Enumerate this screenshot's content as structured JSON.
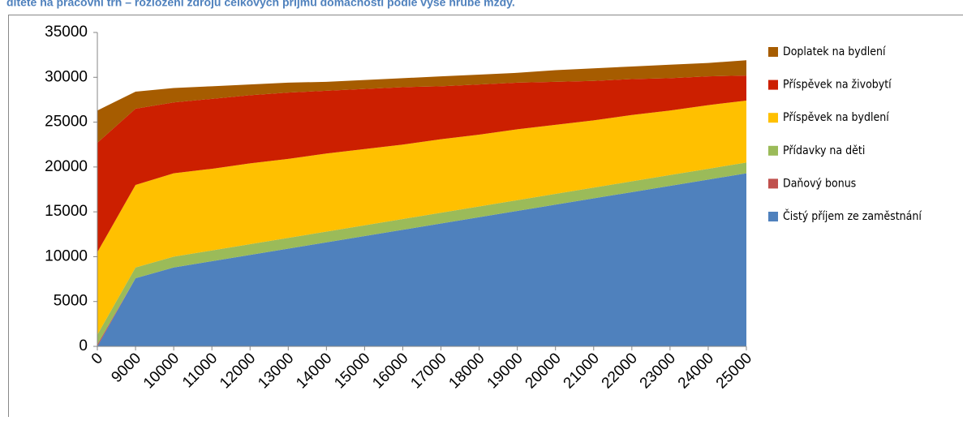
{
  "chart_data": {
    "type": "stacked-area",
    "title": "dítěte na pracovní trh – rozložení zdrojů celkových příjmů domácnosti podle výše hrubé mzdy.",
    "categories": [
      "0",
      "9000",
      "10000",
      "11000",
      "12000",
      "13000",
      "14000",
      "15000",
      "16000",
      "17000",
      "18000",
      "19000",
      "20000",
      "21000",
      "22000",
      "23000",
      "24000",
      "25000"
    ],
    "series": [
      {
        "name": "Čistý příjem ze zaměstnání",
        "color": "#4f81bd",
        "values": [
          0,
          7600,
          8800,
          9500,
          10200,
          10900,
          11600,
          12300,
          13000,
          13700,
          14400,
          15100,
          15800,
          16500,
          17200,
          17900,
          18600,
          19300
        ]
      },
      {
        "name": "Daňový bonus",
        "color": "#c0504d",
        "values": [
          200,
          0,
          0,
          0,
          0,
          0,
          0,
          0,
          0,
          0,
          0,
          0,
          0,
          0,
          0,
          0,
          0,
          0
        ]
      },
      {
        "name": "Přídavky na děti",
        "color": "#9bbb59",
        "values": [
          1100,
          1200,
          1200,
          1200,
          1200,
          1200,
          1200,
          1200,
          1200,
          1200,
          1200,
          1200,
          1200,
          1200,
          1200,
          1200,
          1200,
          1200
        ]
      },
      {
        "name": "Příspěvek na bydlení",
        "color": "#ffc000",
        "values": [
          9200,
          9200,
          9300,
          9100,
          9000,
          8800,
          8700,
          8500,
          8300,
          8200,
          8000,
          7900,
          7700,
          7500,
          7400,
          7200,
          7100,
          6900
        ]
      },
      {
        "name": "Příspěvek na živobytí",
        "color": "#cc1f00",
        "values": [
          12200,
          8500,
          7900,
          7800,
          7600,
          7400,
          7000,
          6700,
          6400,
          5900,
          5600,
          5200,
          4800,
          4400,
          4000,
          3600,
          3200,
          2800
        ]
      },
      {
        "name": "Doplatek na bydlení",
        "color": "#a65c00",
        "values": [
          3600,
          1900,
          1600,
          1400,
          1200,
          1100,
          1000,
          1000,
          1000,
          1100,
          1100,
          1100,
          1300,
          1400,
          1400,
          1500,
          1500,
          1700
        ]
      }
    ],
    "ylim": [
      0,
      35000
    ],
    "yticks": [
      0,
      5000,
      10000,
      15000,
      20000,
      25000,
      30000,
      35000
    ],
    "legend": "right"
  }
}
